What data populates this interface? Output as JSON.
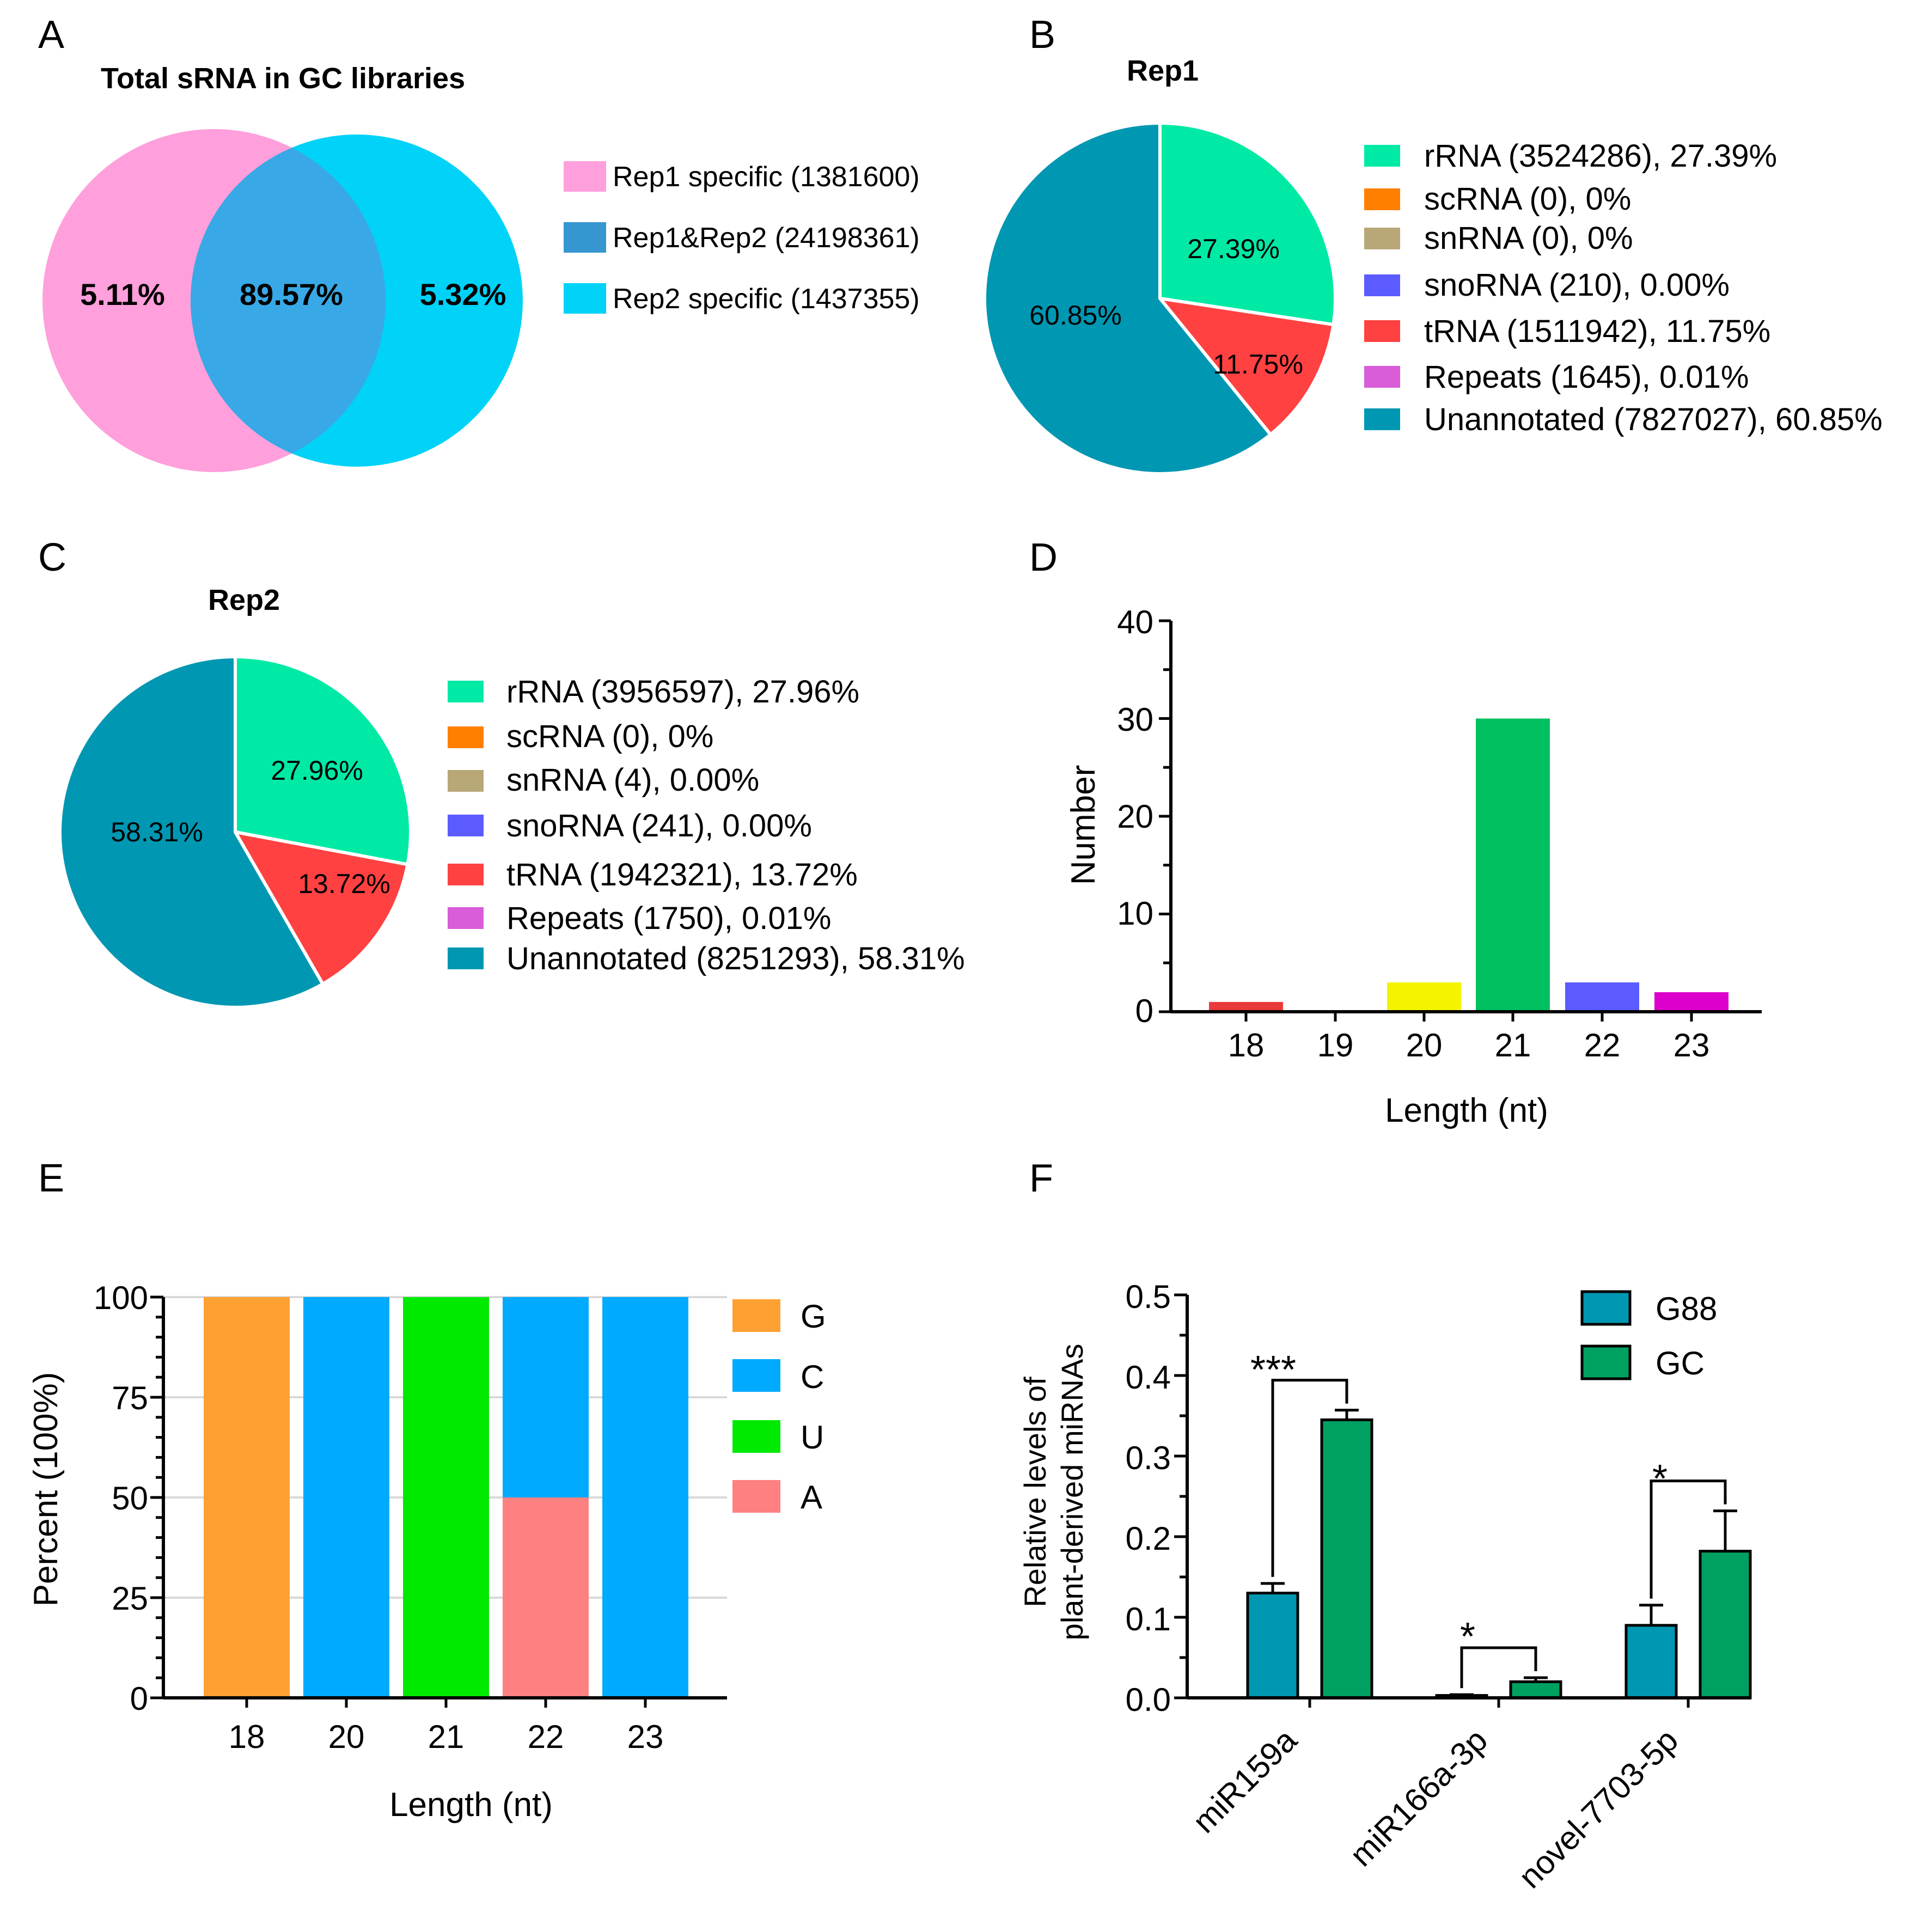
{
  "panels": {
    "A": "A",
    "B": "B",
    "C": "C",
    "D": "D",
    "E": "E",
    "F": "F"
  },
  "colors": {
    "rRNA": "#00eaa6",
    "scRNA": "#ff7f00",
    "snRNA": "#b8a878",
    "snoRNA": "#5b5bff",
    "tRNA": "#ff4141",
    "Repeats": "#d95cd8",
    "Unannotated": "#0097b2",
    "rep1": "#ff9fdb",
    "rep2": "#00d2f8",
    "overlap": "#38a9e6",
    "G": "#ffa033",
    "C": "#00aaff",
    "U": "#00ea00",
    "A": "#ff8080",
    "G88": "#0097b2",
    "GC": "#00a060",
    "len18": "#ea3a3a",
    "len20": "#f4f400",
    "len21": "#00c060",
    "len22": "#5b5bff",
    "len23": "#dd00cc"
  },
  "chart_data": [
    {
      "id": "A",
      "type": "venn",
      "title": "Total sRNA in GC libraries",
      "sets": [
        {
          "name": "Rep1 specific",
          "count": 1381600,
          "label": "5.11%",
          "legend": "Rep1 specific (1381600)"
        },
        {
          "name": "Rep1&Rep2",
          "count": 24198361,
          "label": "89.57%",
          "legend": "Rep1&Rep2 (24198361)"
        },
        {
          "name": "Rep2 specific",
          "count": 1437355,
          "label": "5.32%",
          "legend": "Rep2 specific (1437355)"
        }
      ]
    },
    {
      "id": "B",
      "type": "pie",
      "title": "Rep1",
      "slices": [
        {
          "name": "rRNA",
          "count": 3524286,
          "percent": 27.39,
          "legend": "rRNA (3524286), 27.39%",
          "label": "27.39%"
        },
        {
          "name": "scRNA",
          "count": 0,
          "percent": 0,
          "legend": "scRNA (0), 0%",
          "label": ""
        },
        {
          "name": "snRNA",
          "count": 0,
          "percent": 0,
          "legend": "snRNA (0), 0%",
          "label": ""
        },
        {
          "name": "snoRNA",
          "count": 210,
          "percent": 0.0,
          "legend": "snoRNA (210), 0.00%",
          "label": ""
        },
        {
          "name": "tRNA",
          "count": 1511942,
          "percent": 11.75,
          "legend": "tRNA (1511942), 11.75%",
          "label": "11.75%"
        },
        {
          "name": "Repeats",
          "count": 1645,
          "percent": 0.01,
          "legend": "Repeats (1645), 0.01%",
          "label": ""
        },
        {
          "name": "Unannotated",
          "count": 7827027,
          "percent": 60.85,
          "legend": "Unannotated (7827027), 60.85%",
          "label": "60.85%"
        }
      ]
    },
    {
      "id": "C",
      "type": "pie",
      "title": "Rep2",
      "slices": [
        {
          "name": "rRNA",
          "count": 3956597,
          "percent": 27.96,
          "legend": "rRNA (3956597), 27.96%",
          "label": "27.96%"
        },
        {
          "name": "scRNA",
          "count": 0,
          "percent": 0,
          "legend": "scRNA (0), 0%",
          "label": ""
        },
        {
          "name": "snRNA",
          "count": 4,
          "percent": 0.0,
          "legend": "snRNA (4), 0.00%",
          "label": ""
        },
        {
          "name": "snoRNA",
          "count": 241,
          "percent": 0.0,
          "legend": "snoRNA (241), 0.00%",
          "label": ""
        },
        {
          "name": "tRNA",
          "count": 1942321,
          "percent": 13.72,
          "legend": "tRNA (1942321), 13.72%",
          "label": "13.72%"
        },
        {
          "name": "Repeats",
          "count": 1750,
          "percent": 0.01,
          "legend": "Repeats (1750), 0.01%",
          "label": ""
        },
        {
          "name": "Unannotated",
          "count": 8251293,
          "percent": 58.31,
          "legend": "Unannotated (8251293), 58.31%",
          "label": "58.31%"
        }
      ]
    },
    {
      "id": "D",
      "type": "bar",
      "categories": [
        "18",
        "19",
        "20",
        "21",
        "22",
        "23"
      ],
      "values": [
        1,
        0,
        3,
        30,
        3,
        2
      ],
      "xlabel": "Length (nt)",
      "ylabel": "Number",
      "ylim": [
        0,
        40
      ],
      "yticks": [
        "0",
        "10",
        "20",
        "30",
        "40"
      ]
    },
    {
      "id": "E",
      "type": "bar",
      "stacked": true,
      "categories": [
        "18",
        "20",
        "21",
        "22",
        "23"
      ],
      "series": [
        {
          "name": "A",
          "values": [
            0,
            0,
            0,
            50,
            0
          ]
        },
        {
          "name": "U",
          "values": [
            0,
            0,
            100,
            0,
            0
          ]
        },
        {
          "name": "C",
          "values": [
            0,
            100,
            0,
            50,
            100
          ]
        },
        {
          "name": "G",
          "values": [
            100,
            0,
            0,
            0,
            0
          ]
        }
      ],
      "legend": [
        "G",
        "C",
        "U",
        "A"
      ],
      "xlabel": "Length (nt)",
      "ylabel": "Percent (100%)",
      "ylim": [
        0,
        100
      ],
      "yticks": [
        "0",
        "25",
        "50",
        "75",
        "100"
      ]
    },
    {
      "id": "F",
      "type": "bar",
      "categories": [
        "miR159a",
        "miR166a-3p",
        "novel-7703-5p"
      ],
      "series": [
        {
          "name": "G88",
          "values": [
            0.13,
            0.003,
            0.09
          ],
          "errors": [
            0.012,
            0.001,
            0.025
          ]
        },
        {
          "name": "GC",
          "values": [
            0.345,
            0.02,
            0.182
          ],
          "errors": [
            0.012,
            0.005,
            0.05
          ]
        }
      ],
      "significance": [
        "***",
        "*",
        "*"
      ],
      "ylabel_line1": "Relative levels of",
      "ylabel_line2": "plant-derived miRNAs",
      "ylim": [
        0,
        0.5
      ],
      "yticks": [
        "0.0",
        "0.1",
        "0.2",
        "0.3",
        "0.4",
        "0.5"
      ]
    }
  ]
}
